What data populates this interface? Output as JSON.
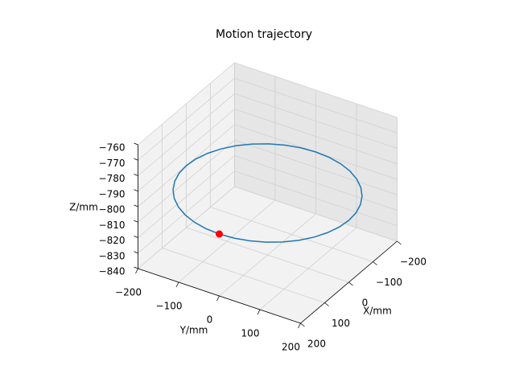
{
  "chart_data": {
    "type": "line3d",
    "title": "Motion trajectory",
    "xlabel": "X/mm",
    "ylabel": "Y/mm",
    "zlabel": "Z/mm",
    "xlim": [
      -200,
      200
    ],
    "ylim": [
      -200,
      200
    ],
    "zlim": [
      -840,
      -760
    ],
    "xticks": [
      {
        "value": -200,
        "label": "−200"
      },
      {
        "value": -100,
        "label": "−100"
      },
      0,
      100,
      200
    ],
    "yticks": [
      {
        "value": -200,
        "label": "−200"
      },
      {
        "value": -100,
        "label": "−100"
      },
      0,
      100,
      200
    ],
    "zticks": [
      {
        "value": -840,
        "label": "−840"
      },
      {
        "value": -830,
        "label": "−830"
      },
      {
        "value": -820,
        "label": "−820"
      },
      {
        "value": -810,
        "label": "−810"
      },
      {
        "value": -800,
        "label": "−800"
      },
      {
        "value": -790,
        "label": "−790"
      },
      {
        "value": -780,
        "label": "−780"
      },
      {
        "value": -770,
        "label": "−770"
      },
      {
        "value": -760,
        "label": "−760"
      }
    ],
    "grid": true,
    "series": [
      {
        "color": "#1f77b4",
        "x": [
          200,
          197.0,
          187.9,
          173.2,
          153.2,
          128.6,
          100,
          68.4,
          34.7,
          0,
          -34.7,
          -68.4,
          -100,
          -128.6,
          -153.2,
          -173.2,
          -187.9,
          -197.0,
          -200,
          -197.0,
          -187.9,
          -173.2,
          -153.2,
          -128.6,
          -100,
          -68.4,
          -34.7,
          0,
          34.7,
          68.4,
          100,
          128.6,
          153.2,
          173.2,
          187.9,
          197.0,
          200
        ],
        "y": [
          0,
          34.7,
          68.4,
          100,
          128.6,
          153.2,
          173.2,
          187.9,
          197.0,
          200,
          197.0,
          187.9,
          173.2,
          153.2,
          128.6,
          100,
          68.4,
          34.7,
          0,
          -34.7,
          -68.4,
          -100,
          -128.6,
          -153.2,
          -173.2,
          -187.9,
          -197.0,
          -200,
          -197.0,
          -187.9,
          -173.2,
          -153.2,
          -128.6,
          -100,
          -68.4,
          -34.7,
          0
        ],
        "z": [
          -800,
          -800,
          -800,
          -800,
          -800,
          -800,
          -800,
          -800,
          -800,
          -800,
          -800,
          -800,
          -800,
          -800,
          -800,
          -800,
          -800,
          -800,
          -800,
          -800,
          -800,
          -800,
          -800,
          -800,
          -800,
          -800,
          -800,
          -800,
          -800,
          -800,
          -800,
          -800,
          -800,
          -800,
          -800,
          -800,
          -800
        ]
      }
    ],
    "marker": {
      "x": 200,
      "y": 0,
      "z": -800,
      "color": "#ff0000"
    }
  }
}
